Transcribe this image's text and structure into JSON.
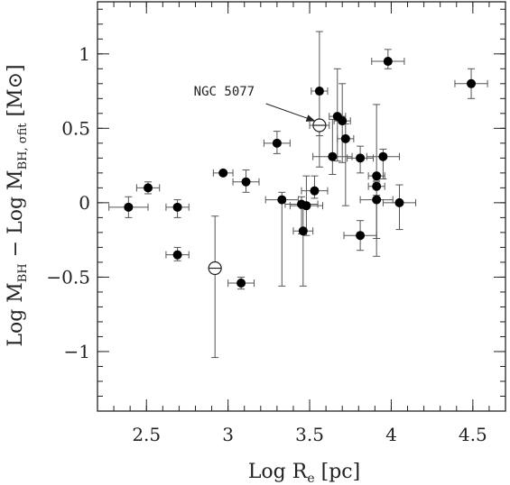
{
  "chart_data": {
    "type": "scatter",
    "xlabel": {
      "main": "Log R",
      "sub": "e",
      "unit": "[pc]"
    },
    "ylabel": {
      "main": "Log M",
      "sub1": "BH",
      "mid": " − Log M",
      "sub2": "BH, σfit",
      "unit": "[M⊙]"
    },
    "xlim": [
      2.2,
      4.7
    ],
    "ylim": [
      -1.4,
      1.35
    ],
    "xticks": [
      2.5,
      3,
      3.5,
      4,
      4.5
    ],
    "xtick_labels": [
      "2.5",
      "3",
      "3.5",
      "4",
      "4.5"
    ],
    "yticks": [
      -1,
      -0.5,
      0,
      0.5,
      1
    ],
    "ytick_labels": [
      "−1",
      "−0.5",
      "0",
      "0.5",
      "1"
    ],
    "minor_x_step": 0.1,
    "minor_y_step": 0.1,
    "grid": false,
    "series": [
      {
        "marker": "filled-circle",
        "points": [
          {
            "x": 2.39,
            "y": -0.03,
            "xerr": 0.12,
            "yerr": [
              0.07,
              0.07
            ]
          },
          {
            "x": 2.51,
            "y": 0.1,
            "xerr": 0.07,
            "yerr": [
              0.04,
              0.04
            ]
          },
          {
            "x": 2.69,
            "y": -0.03,
            "xerr": 0.07,
            "yerr": [
              0.07,
              0.05
            ]
          },
          {
            "x": 2.69,
            "y": -0.35,
            "xerr": 0.07,
            "yerr": [
              0.04,
              0.05
            ]
          },
          {
            "x": 2.97,
            "y": 0.2,
            "xerr": 0.06,
            "yerr": [
              0.0,
              0.0
            ]
          },
          {
            "x": 3.08,
            "y": -0.54,
            "xerr": 0.08,
            "yerr": [
              0.04,
              0.04
            ]
          },
          {
            "x": 3.11,
            "y": 0.14,
            "xerr": 0.08,
            "yerr": [
              0.07,
              0.08
            ]
          },
          {
            "x": 3.3,
            "y": 0.4,
            "xerr": 0.08,
            "yerr": [
              0.07,
              0.08
            ]
          },
          {
            "x": 3.33,
            "y": 0.02,
            "xerr": 0.1,
            "yerr": [
              0.58,
              0.05
            ]
          },
          {
            "x": 3.45,
            "y": -0.01,
            "xerr": 0.1,
            "yerr": [
              0.2,
              0.05
            ]
          },
          {
            "x": 3.46,
            "y": -0.19,
            "xerr": 0.06,
            "yerr": [
              0.37,
              0.15
            ]
          },
          {
            "x": 3.48,
            "y": -0.02,
            "xerr": 0.1,
            "yerr": [
              0.2,
              0.2
            ]
          },
          {
            "x": 3.53,
            "y": 0.08,
            "xerr": 0.08,
            "yerr": [
              0.05,
              0.1
            ]
          },
          {
            "x": 3.56,
            "y": 0.75,
            "xerr": 0.05,
            "yerr": [
              0.3,
              0.4
            ]
          },
          {
            "x": 3.64,
            "y": 0.31,
            "xerr": 0.12,
            "yerr": [
              0.12,
              0.25
            ]
          },
          {
            "x": 3.67,
            "y": 0.58,
            "xerr": 0.05,
            "yerr": [
              0.3,
              0.32
            ]
          },
          {
            "x": 3.7,
            "y": 0.55,
            "xerr": 0.05,
            "yerr": [
              0.28,
              0.25
            ]
          },
          {
            "x": 3.72,
            "y": 0.43,
            "xerr": 0.05,
            "yerr": [
              0.45,
              0.1
            ]
          },
          {
            "x": 3.81,
            "y": 0.3,
            "xerr": 0.08,
            "yerr": [
              0.1,
              0.08
            ]
          },
          {
            "x": 3.81,
            "y": -0.22,
            "xerr": 0.1,
            "yerr": [
              0.1,
              0.1
            ]
          },
          {
            "x": 3.91,
            "y": 0.18,
            "xerr": 0.05,
            "yerr": [
              0.03,
              0.48
            ]
          },
          {
            "x": 3.91,
            "y": 0.11,
            "xerr": 0.05,
            "yerr": [
              0.35,
              0.03
            ]
          },
          {
            "x": 3.91,
            "y": 0.02,
            "xerr": 0.1,
            "yerr": [
              0.38,
              0.03
            ]
          },
          {
            "x": 3.95,
            "y": 0.31,
            "xerr": 0.1,
            "yerr": [
              0.15,
              0.05
            ]
          },
          {
            "x": 3.98,
            "y": 0.95,
            "xerr": 0.1,
            "yerr": [
              0.05,
              0.08
            ]
          },
          {
            "x": 4.05,
            "y": 0.0,
            "xerr": 0.1,
            "yerr": [
              0.18,
              0.12
            ]
          },
          {
            "x": 4.49,
            "y": 0.8,
            "xerr": 0.1,
            "yerr": [
              0.1,
              0.1
            ]
          }
        ]
      },
      {
        "marker": "open-crossed-circle",
        "points": [
          {
            "x": 3.56,
            "y": 0.52,
            "xerr": 0.06,
            "yerr": [
              0.28,
              0.0
            ]
          },
          {
            "x": 2.92,
            "y": -0.44,
            "xerr": 0.0,
            "yerr": [
              0.6,
              0.35
            ]
          }
        ]
      }
    ],
    "annotations": [
      {
        "text": "NGC 5077",
        "text_x": 2.79,
        "text_y": 0.72,
        "arrow_to_x": 3.53,
        "arrow_to_y": 0.55
      }
    ]
  }
}
